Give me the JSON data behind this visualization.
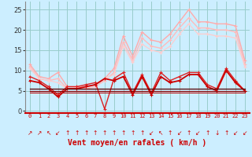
{
  "background_color": "#cceeff",
  "grid_color": "#99cccc",
  "x_labels": [
    "0",
    "1",
    "2",
    "3",
    "4",
    "5",
    "6",
    "7",
    "8",
    "9",
    "10",
    "11",
    "12",
    "13",
    "14",
    "15",
    "16",
    "17",
    "18",
    "19",
    "20",
    "21",
    "22",
    "23"
  ],
  "xlabel": "Vent moyen/en rafales ( km/h )",
  "xlabel_color": "#cc0000",
  "xlabel_fontsize": 7,
  "yticks": [
    0,
    5,
    10,
    15,
    20,
    25
  ],
  "ylim": [
    -0.5,
    27
  ],
  "xlim": [
    -0.5,
    23.5
  ],
  "lines": [
    {
      "y": [
        11.5,
        8.5,
        8.0,
        9.5,
        6.0,
        6.0,
        6.0,
        6.5,
        8.0,
        10.5,
        18.5,
        13.5,
        19.5,
        17.5,
        17.0,
        19.0,
        22.0,
        25.0,
        22.0,
        22.0,
        21.5,
        21.5,
        21.0,
        12.5
      ],
      "color": "#ffaaaa",
      "lw": 1.0,
      "marker": "+"
    },
    {
      "y": [
        11.0,
        8.0,
        7.5,
        8.0,
        5.5,
        5.5,
        5.5,
        6.0,
        7.5,
        9.5,
        17.0,
        12.5,
        18.0,
        16.0,
        15.5,
        17.5,
        20.5,
        23.0,
        20.5,
        20.5,
        20.0,
        20.0,
        19.5,
        11.5
      ],
      "color": "#ffbbbb",
      "lw": 1.0,
      "marker": "+"
    },
    {
      "y": [
        10.5,
        8.0,
        7.5,
        7.0,
        5.5,
        5.8,
        5.8,
        6.5,
        8.0,
        9.0,
        16.0,
        12.0,
        16.5,
        15.0,
        14.5,
        16.0,
        19.0,
        21.5,
        19.0,
        19.0,
        18.5,
        18.5,
        18.0,
        11.0
      ],
      "color": "#ffcccc",
      "lw": 0.9,
      "marker": "+"
    },
    {
      "y": [
        8.5,
        7.5,
        6.0,
        4.0,
        6.0,
        6.0,
        6.5,
        7.0,
        0.5,
        8.0,
        9.5,
        4.5,
        9.0,
        4.5,
        9.5,
        7.5,
        8.5,
        9.5,
        9.5,
        6.5,
        5.5,
        10.5,
        7.5,
        5.0
      ],
      "color": "#dd2222",
      "lw": 1.0,
      "marker": "+"
    },
    {
      "y": [
        7.5,
        7.0,
        5.5,
        3.5,
        5.5,
        5.5,
        6.0,
        6.5,
        8.0,
        7.5,
        8.5,
        4.0,
        8.5,
        4.0,
        8.5,
        7.0,
        7.5,
        9.0,
        9.0,
        6.0,
        5.0,
        10.0,
        7.0,
        5.0
      ],
      "color": "#cc0000",
      "lw": 1.3,
      "marker": "+"
    },
    {
      "y": [
        5.5,
        5.5,
        5.5,
        5.5,
        5.5,
        5.5,
        5.5,
        5.5,
        5.5,
        5.5,
        5.5,
        5.5,
        5.5,
        5.5,
        5.5,
        5.5,
        5.5,
        5.5,
        5.5,
        5.5,
        5.5,
        5.5,
        5.5,
        5.5
      ],
      "color": "#550000",
      "lw": 0.9,
      "marker": null
    },
    {
      "y": [
        5.0,
        5.0,
        5.0,
        5.0,
        5.0,
        5.0,
        5.0,
        5.0,
        5.0,
        5.0,
        5.0,
        5.0,
        5.0,
        5.0,
        5.0,
        5.0,
        5.0,
        5.0,
        5.0,
        5.0,
        5.0,
        5.0,
        5.0,
        5.0
      ],
      "color": "#880000",
      "lw": 0.9,
      "marker": null
    },
    {
      "y": [
        4.5,
        4.5,
        4.5,
        4.5,
        4.5,
        4.5,
        4.5,
        4.5,
        4.5,
        4.5,
        4.5,
        4.5,
        4.5,
        4.5,
        4.5,
        4.5,
        4.5,
        4.5,
        4.5,
        4.5,
        4.5,
        4.5,
        4.5,
        4.5
      ],
      "color": "#bb0000",
      "lw": 0.7,
      "marker": null
    }
  ],
  "wind_arrows": [
    "↗",
    "↗",
    "↖",
    "↙",
    "↑",
    "↑",
    "↑",
    "↑",
    "↑",
    "↑",
    "↑",
    "↑",
    "↑",
    "↙",
    "↖",
    "↑",
    "↙",
    "↑",
    "↙",
    "↑",
    "↓",
    "↑",
    "↙",
    "↙"
  ]
}
